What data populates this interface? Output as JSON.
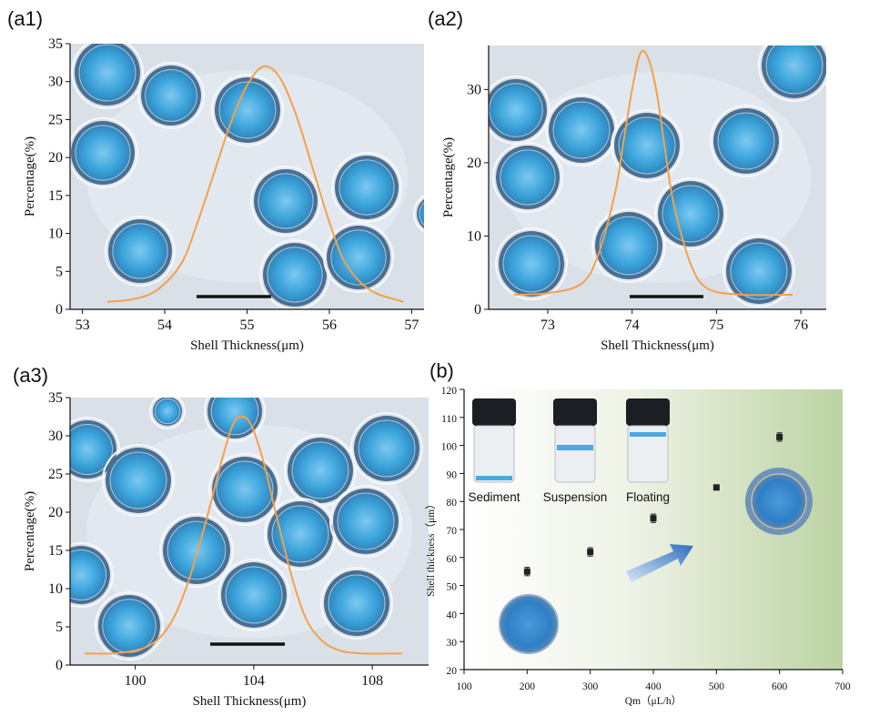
{
  "colors": {
    "curve": "#f5a04a",
    "background_photo": "#d9e0e8",
    "sphere_outer": "#4a6f92",
    "sphere_inner": "#3fa7de",
    "gradient_end": "#c7d9b2",
    "scale_bar": "#111111",
    "marker": "#222222",
    "arrow": "#3a78c8"
  },
  "labels": {
    "a1": "(a1)",
    "a2": "(a2)",
    "a3": "(a3)",
    "b": "(b)"
  },
  "vials": [
    "Sediment",
    "Suspension",
    "Floating"
  ],
  "chart_data": [
    {
      "id": "a1",
      "type": "line",
      "xlabel": "Shell Thickness(μm)",
      "ylabel": "Percentage(%)",
      "xlim": [
        52.85,
        57.15
      ],
      "ylim": [
        0,
        35
      ],
      "xticks": [
        53,
        54,
        55,
        56,
        57
      ],
      "yticks": [
        0,
        5,
        10,
        15,
        20,
        25,
        30,
        35
      ],
      "series": [
        {
          "x": [
            53.3,
            53.6,
            53.9,
            54.2,
            54.4,
            54.6,
            54.8,
            55.0,
            55.2,
            55.4,
            55.6,
            55.8,
            56.0,
            56.2,
            56.5,
            56.9
          ],
          "y": [
            1,
            1.3,
            2.5,
            6,
            11.5,
            18,
            24.5,
            29.5,
            32,
            30.5,
            25.5,
            18.5,
            11.5,
            6,
            2.5,
            1
          ]
        }
      ]
    },
    {
      "id": "a2",
      "type": "line",
      "xlabel": "Shell Thickness(μm)",
      "ylabel": "Percentage(%)",
      "xlim": [
        72.3,
        76.3
      ],
      "ylim": [
        0,
        36
      ],
      "xticks": [
        73,
        74,
        75,
        76
      ],
      "yticks": [
        0,
        10,
        20,
        30
      ],
      "series": [
        {
          "x": [
            72.6,
            73.0,
            73.4,
            73.6,
            73.8,
            73.9,
            74.0,
            74.1,
            74.2,
            74.3,
            74.4,
            74.5,
            74.7,
            74.9,
            75.3,
            75.9
          ],
          "y": [
            2,
            2.2,
            3.5,
            7.5,
            16,
            23,
            30,
            35,
            34,
            29,
            21,
            14,
            6,
            2.8,
            2,
            2
          ]
        }
      ]
    },
    {
      "id": "a3",
      "type": "line",
      "xlabel": "Shell Thickness(μm)",
      "ylabel": "Percentage(%)",
      "xlim": [
        97.8,
        109.9
      ],
      "ylim": [
        0,
        35
      ],
      "xticks": [
        100,
        104,
        108
      ],
      "yticks": [
        0,
        5,
        10,
        15,
        20,
        25,
        30,
        35
      ],
      "series": [
        {
          "x": [
            98.3,
            99.5,
            100.5,
            101.2,
            101.8,
            102.4,
            102.9,
            103.3,
            103.6,
            103.9,
            104.3,
            104.8,
            105.4,
            106.0,
            107.0,
            109.0
          ],
          "y": [
            1.5,
            1.6,
            2.6,
            5.5,
            11,
            19,
            26.5,
            31.5,
            32.5,
            31.5,
            27,
            19,
            10,
            4.5,
            1.8,
            1.5
          ]
        }
      ]
    },
    {
      "id": "b",
      "type": "scatter",
      "xlabel": "Qm（μL/h）",
      "ylabel": "Shell thickness（μm）",
      "xlim": [
        100,
        700
      ],
      "ylim": [
        20,
        120
      ],
      "xticks": [
        100,
        200,
        300,
        400,
        500,
        600,
        700
      ],
      "yticks": [
        20,
        30,
        40,
        50,
        60,
        70,
        80,
        90,
        100,
        110,
        120
      ],
      "series": [
        {
          "x": [
            200,
            300,
            400,
            500,
            600
          ],
          "y": [
            55,
            62,
            74,
            85,
            103
          ],
          "err": [
            1.5,
            1.5,
            1.5,
            0.5,
            1.5
          ]
        }
      ]
    }
  ]
}
